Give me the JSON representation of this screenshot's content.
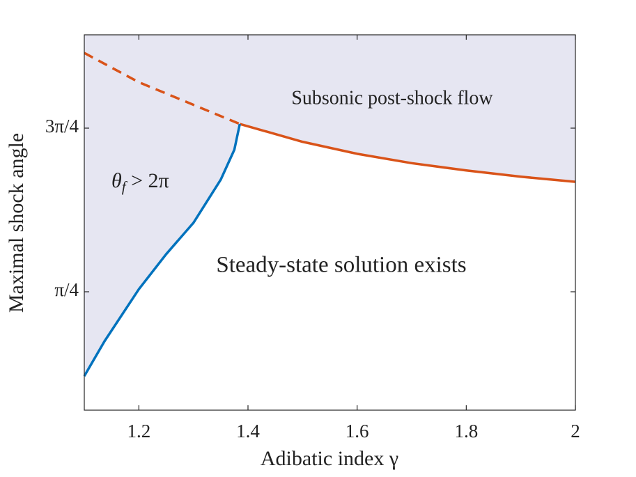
{
  "chart_data": {
    "type": "line",
    "xlabel": "Adibatic index γ",
    "ylabel": "Maximal shock angle",
    "xlim": [
      1.1,
      2
    ],
    "ylim": [
      -0.351,
      3.252
    ],
    "xticks": [
      1.2,
      1.4,
      1.6,
      1.8,
      2
    ],
    "yticks": [
      {
        "value": 0.7854,
        "label": "π/4"
      },
      {
        "value": 2.3562,
        "label": "3π/4"
      }
    ],
    "fill_color": "#e6e6f2",
    "series": [
      {
        "color": "#d95319",
        "dashed": true,
        "x": [
          1.1,
          1.2,
          1.3,
          1.385
        ],
        "values": [
          3.078,
          2.797,
          2.58,
          2.396
        ]
      },
      {
        "color": "#d95319",
        "dashed": false,
        "x": [
          1.385,
          1.5,
          1.6,
          1.7,
          1.8,
          1.9,
          2
        ],
        "values": [
          2.396,
          2.225,
          2.11,
          2.02,
          1.95,
          1.89,
          1.841
        ]
      },
      {
        "color": "#0072bd",
        "dashed": false,
        "x": [
          1.1,
          1.137,
          1.2,
          1.25,
          1.3,
          1.35,
          1.375,
          1.385
        ],
        "values": [
          -0.024,
          0.31,
          0.81,
          1.146,
          1.447,
          1.861,
          2.149,
          2.396
        ]
      }
    ],
    "annotations": [
      {
        "text": "Subsonic post-shock flow"
      },
      {
        "text": "θ",
        "sub": "f",
        "rest": " > 2π"
      },
      {
        "text": "Steady-state solution exists"
      }
    ]
  }
}
